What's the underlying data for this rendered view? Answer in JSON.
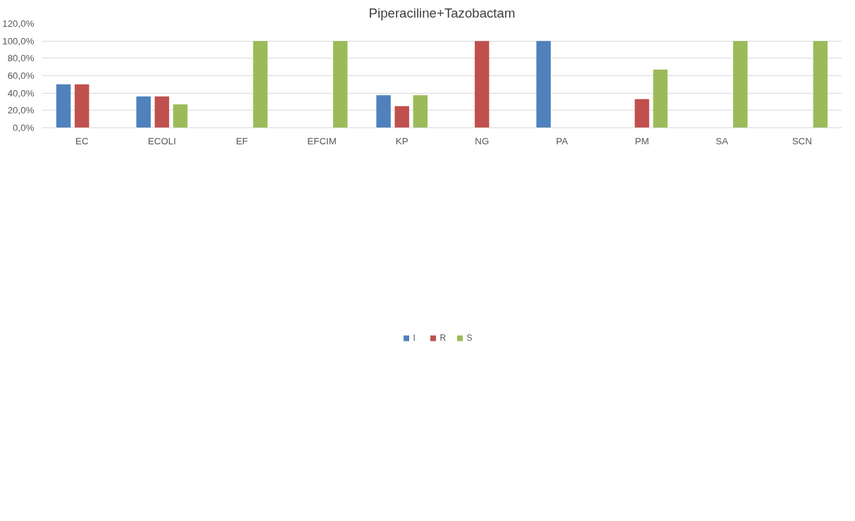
{
  "chart_data": {
    "type": "bar",
    "title": "Piperaciline+Tazobactam",
    "categories": [
      "EC",
      "ECOLI",
      "EF",
      "EFCIM",
      "KP",
      "NG",
      "PA",
      "PM",
      "SA",
      "SCN"
    ],
    "series": [
      {
        "name": "I",
        "color": "#4f81bd",
        "values": [
          50,
          36,
          null,
          null,
          37.5,
          null,
          100,
          null,
          null,
          null
        ]
      },
      {
        "name": "R",
        "color": "#c0504d",
        "values": [
          50,
          36,
          null,
          null,
          25,
          100,
          null,
          33,
          null,
          null
        ]
      },
      {
        "name": "S",
        "color": "#9bbb59",
        "values": [
          null,
          27,
          100,
          100,
          37.5,
          null,
          null,
          67,
          100,
          100
        ]
      }
    ],
    "ylim": [
      0,
      120
    ],
    "yticks": [
      {
        "value": 0,
        "label": "0,0%"
      },
      {
        "value": 20,
        "label": "20,0%"
      },
      {
        "value": 40,
        "label": "40,0%"
      },
      {
        "value": 60,
        "label": "60,0%"
      },
      {
        "value": 80,
        "label": "80,0%"
      },
      {
        "value": 100,
        "label": "100,0%"
      },
      {
        "value": 120,
        "label": "120,0%"
      }
    ],
    "grid": "y",
    "legend": "bottom"
  }
}
